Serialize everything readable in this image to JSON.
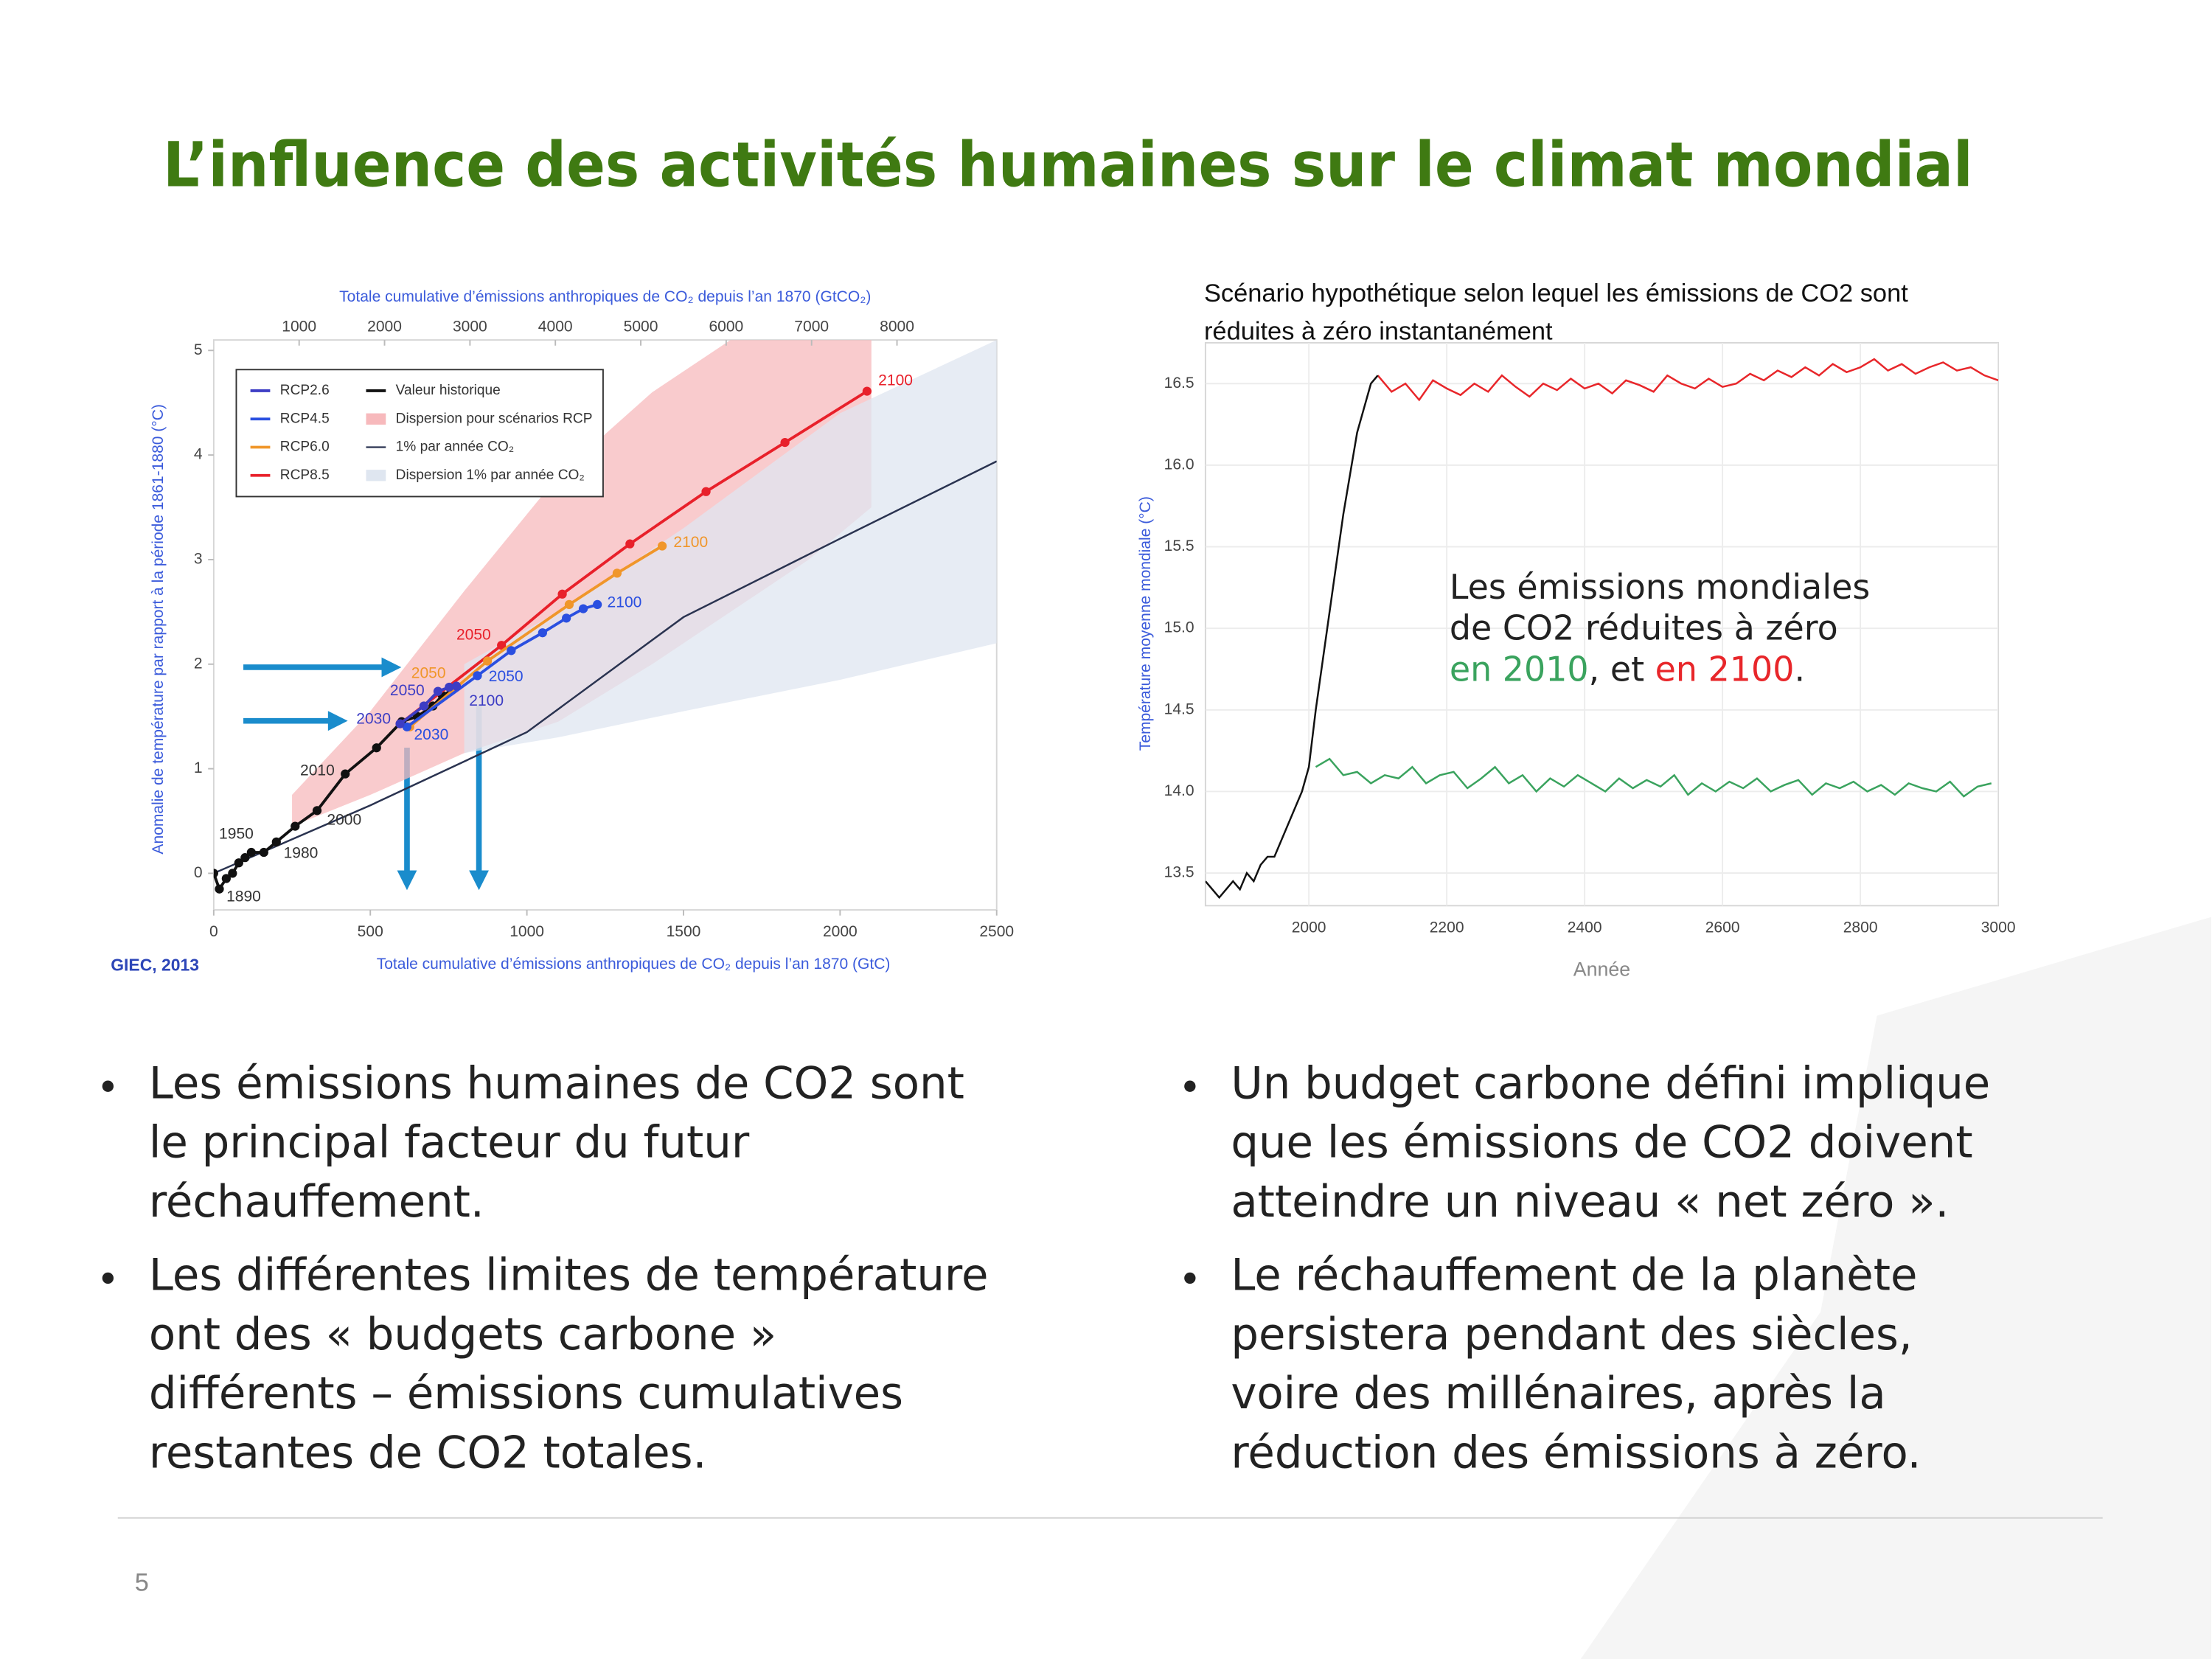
{
  "title": "L’influence des activités humaines sur le climat mondial",
  "chart_data": [
    {
      "type": "line",
      "x2label": "Totale cumulative d’émissions anthropiques de CO₂ depuis l’an 1870 (GtCO₂)",
      "xlabel": "Totale cumulative d’émissions anthropiques de CO₂ depuis l’an 1870 (GtC)",
      "ylabel": "Anomalie de température par rapport à la période 1861-1880 (°C)",
      "source": "GIEC, 2013",
      "xlim": [
        0,
        2500
      ],
      "xticks": [
        0,
        500,
        1000,
        1500,
        2000,
        2500
      ],
      "x2lim": [
        0,
        9167
      ],
      "x2ticks": [
        1000,
        2000,
        3000,
        4000,
        5000,
        6000,
        7000,
        8000
      ],
      "ylim": [
        -0.35,
        5.1
      ],
      "yticks": [
        0,
        1,
        2,
        3,
        4,
        5
      ],
      "grid": false,
      "legend": "top-left",
      "series": [
        {
          "name": "RCP2.6",
          "color": "#3d3dc4",
          "markers": true,
          "x": [
            595,
            671,
            716,
            752,
            775
          ],
          "values": [
            1.43,
            1.6,
            1.74,
            1.78,
            1.79
          ],
          "point_labels": [
            "2030",
            null,
            "2050",
            null,
            "2100"
          ]
        },
        {
          "name": "RCP4.5",
          "color": "#2a4fe0",
          "markers": true,
          "x": [
            617,
            842,
            950,
            1050,
            1126,
            1180,
            1225
          ],
          "values": [
            1.4,
            1.89,
            2.13,
            2.3,
            2.44,
            2.53,
            2.57
          ],
          "point_labels": [
            "2030",
            "2050",
            null,
            null,
            null,
            null,
            "2100"
          ]
        },
        {
          "name": "RCP6.0",
          "color": "#f0962a",
          "markers": true,
          "x": [
            626,
            874,
            1135,
            1288,
            1432
          ],
          "values": [
            1.4,
            2.03,
            2.57,
            2.87,
            3.13
          ],
          "point_labels": [
            null,
            "2050",
            null,
            null,
            "2100"
          ]
        },
        {
          "name": "RCP8.5",
          "color": "#e8202a",
          "markers": true,
          "x": [
            595,
            919,
            1113,
            1329,
            1572,
            1824,
            2086
          ],
          "values": [
            1.43,
            2.18,
            2.67,
            3.15,
            3.65,
            4.12,
            4.61
          ],
          "point_labels": [
            null,
            "2050",
            null,
            null,
            null,
            null,
            "2100"
          ]
        },
        {
          "name": "Valeur historique",
          "color": "#111111",
          "markers": true,
          "x": [
            0,
            18,
            40,
            60,
            80,
            100,
            120,
            160,
            200,
            260,
            330,
            420,
            520,
            600,
            650,
            700,
            730,
            760
          ],
          "values": [
            0,
            -0.15,
            -0.05,
            0,
            0.1,
            0.15,
            0.2,
            0.2,
            0.3,
            0.45,
            0.6,
            0.95,
            1.2,
            1.45,
            1.5,
            1.6,
            1.7,
            1.75
          ],
          "point_labels": [
            null,
            "1890",
            null,
            null,
            "1950",
            null,
            null,
            "1980",
            null,
            null,
            "2000",
            "2010",
            null,
            null,
            null,
            null,
            null,
            null
          ]
        },
        {
          "name": "1% par année CO₂",
          "color": "#2a3350",
          "markers": false,
          "x": [
            0,
            500,
            1000,
            1500,
            2000,
            2500
          ],
          "values": [
            0,
            0.65,
            1.35,
            2.45,
            3.2,
            3.94
          ]
        }
      ],
      "bands": [
        {
          "name": "Dispersion pour scénarios RCP",
          "color": "#f7b9bc",
          "x": [
            250,
            500,
            800,
            1100,
            1400,
            1650,
            1900,
            2100
          ],
          "lower": [
            0.45,
            0.75,
            1.15,
            1.45,
            2.0,
            2.5,
            3.0,
            3.5
          ],
          "upper": [
            0.75,
            1.55,
            2.7,
            3.8,
            4.6,
            5.1,
            5.1,
            5.1
          ]
        },
        {
          "name": "Dispersion 1% par année CO₂",
          "color": "#dfe6f0",
          "x": [
            800,
            1100,
            1500,
            2000,
            2500
          ],
          "lower": [
            1.15,
            1.3,
            1.55,
            1.85,
            2.2
          ],
          "upper": [
            2.0,
            2.5,
            3.3,
            4.4,
            5.1
          ]
        }
      ]
    },
    {
      "type": "line",
      "title_lines": [
        "Scénario hypothétique selon lequel les émissions de CO2 sont",
        "réduites à zéro instantanément"
      ],
      "xlabel": "Année",
      "ylabel": "Température moyenne mondiale (°C)",
      "xlim": [
        1850,
        3000
      ],
      "xticks": [
        2000,
        2200,
        2400,
        2600,
        2800,
        3000
      ],
      "ylim": [
        13.3,
        16.75
      ],
      "yticks": [
        13.5,
        {
          "value": 14,
          "label": "14.0"
        },
        14.5,
        {
          "value": 15,
          "label": "15.0"
        },
        15.5,
        {
          "value": 16,
          "label": "16.0"
        },
        16.5
      ],
      "grid": true,
      "annotation": {
        "lines": [
          "Les émissions mondiales",
          "de CO2 réduites à zéro"
        ],
        "last_line": [
          {
            "text": "en 2010",
            "color": "#3aa35e"
          },
          {
            "text": ", et ",
            "color": "#222222"
          },
          {
            "text": "en 2100",
            "color": "#e8262a"
          },
          {
            "text": ".",
            "color": "#222222"
          }
        ]
      },
      "series": [
        {
          "color": "#111111",
          "markers": false,
          "x": [
            1850,
            1860,
            1870,
            1880,
            1890,
            1900,
            1910,
            1920,
            1930,
            1940,
            1950,
            1960,
            1970,
            1980,
            1990,
            2000,
            2010,
            2020,
            2030,
            2040,
            2050,
            2060,
            2070,
            2080,
            2090,
            2100
          ],
          "values": [
            13.45,
            13.4,
            13.35,
            13.4,
            13.45,
            13.4,
            13.5,
            13.45,
            13.55,
            13.6,
            13.6,
            13.7,
            13.8,
            13.9,
            14.0,
            14.15,
            14.5,
            14.8,
            15.1,
            15.4,
            15.7,
            15.95,
            16.2,
            16.35,
            16.5,
            16.55
          ]
        },
        {
          "color": "#e8262a",
          "markers": false,
          "x": [
            2100,
            2120,
            2140,
            2160,
            2180,
            2200,
            2220,
            2240,
            2260,
            2280,
            2300,
            2320,
            2340,
            2360,
            2380,
            2400,
            2420,
            2440,
            2460,
            2480,
            2500,
            2520,
            2540,
            2560,
            2580,
            2600,
            2620,
            2640,
            2660,
            2680,
            2700,
            2720,
            2740,
            2760,
            2780,
            2800,
            2820,
            2840,
            2860,
            2880,
            2900,
            2920,
            2940,
            2960,
            2980,
            3000
          ],
          "values": [
            16.55,
            16.45,
            16.5,
            16.4,
            16.52,
            16.47,
            16.43,
            16.5,
            16.45,
            16.55,
            16.48,
            16.42,
            16.5,
            16.46,
            16.53,
            16.47,
            16.5,
            16.44,
            16.52,
            16.49,
            16.45,
            16.55,
            16.5,
            16.47,
            16.53,
            16.48,
            16.5,
            16.56,
            16.52,
            16.58,
            16.54,
            16.6,
            16.55,
            16.62,
            16.57,
            16.6,
            16.65,
            16.58,
            16.62,
            16.56,
            16.6,
            16.63,
            16.58,
            16.6,
            16.55,
            16.52
          ]
        },
        {
          "color": "#3aa35e",
          "markers": false,
          "x": [
            2010,
            2030,
            2050,
            2070,
            2090,
            2110,
            2130,
            2150,
            2170,
            2190,
            2210,
            2230,
            2250,
            2270,
            2290,
            2310,
            2330,
            2350,
            2370,
            2390,
            2410,
            2430,
            2450,
            2470,
            2490,
            2510,
            2530,
            2550,
            2570,
            2590,
            2610,
            2630,
            2650,
            2670,
            2690,
            2710,
            2730,
            2750,
            2770,
            2790,
            2810,
            2830,
            2850,
            2870,
            2890,
            2910,
            2930,
            2950,
            2970,
            2990
          ],
          "values": [
            14.15,
            14.2,
            14.1,
            14.12,
            14.05,
            14.1,
            14.08,
            14.15,
            14.05,
            14.1,
            14.12,
            14.02,
            14.08,
            14.15,
            14.05,
            14.1,
            14.0,
            14.08,
            14.03,
            14.1,
            14.05,
            14.0,
            14.08,
            14.02,
            14.07,
            14.03,
            14.1,
            13.98,
            14.05,
            14.0,
            14.06,
            14.02,
            14.08,
            14.0,
            14.04,
            14.07,
            13.98,
            14.05,
            14.02,
            14.06,
            14.0,
            14.04,
            13.98,
            14.05,
            14.02,
            14.0,
            14.06,
            13.97,
            14.03,
            14.05
          ]
        }
      ]
    }
  ],
  "bullets_left": [
    [
      "Les émissions humaines de CO2 sont",
      "le principal facteur du futur",
      "réchauffement."
    ],
    [
      "Les différentes limites de température",
      "ont des « budgets carbone »",
      "différents – émissions cumulatives",
      "restantes de CO2 totales."
    ]
  ],
  "bullets_right": [
    [
      "Un budget carbone défini implique",
      "que les émissions de CO2 doivent",
      "atteindre un niveau « net zéro »."
    ],
    [
      "Le réchauffement de la planète",
      "persistera pendant des siècles,",
      "voire des millénaires, après la",
      "réduction des émissions à zéro."
    ]
  ],
  "page_number": "5"
}
